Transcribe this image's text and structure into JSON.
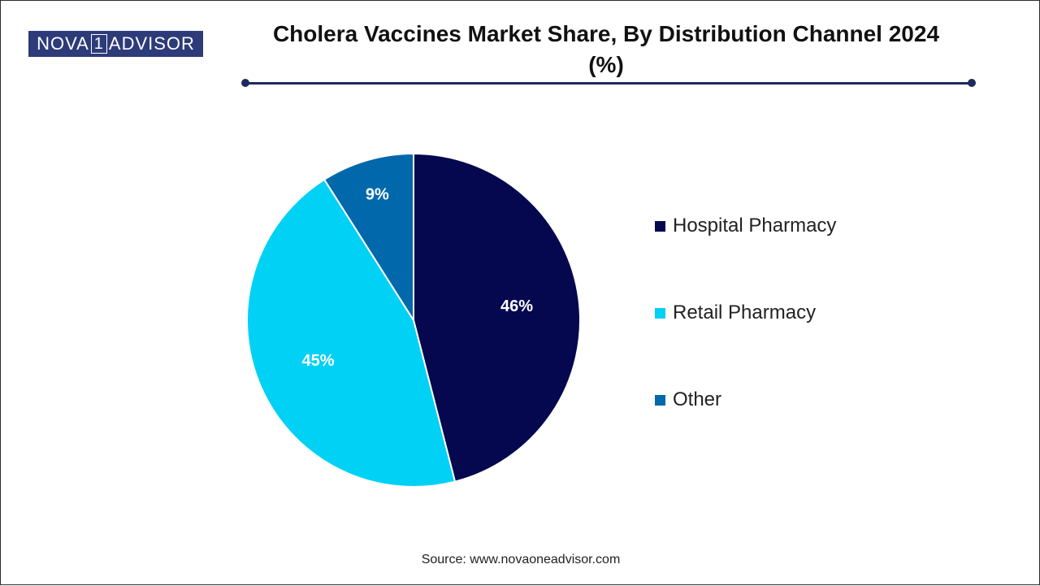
{
  "logo": {
    "part1": "NOVA",
    "part2": "1",
    "part3": "ADVISOR"
  },
  "header": {
    "title_line1": "Cholera Vaccines Market Share, By Distribution Channel 2024",
    "title_line2": "(%)"
  },
  "chart_data": {
    "type": "pie",
    "title": "Cholera Vaccines Market Share, By Distribution Channel 2024 (%)",
    "categories": [
      "Hospital Pharmacy",
      "Retail Pharmacy",
      "Other"
    ],
    "values": [
      46,
      45,
      9
    ],
    "labels": [
      "46%",
      "45%",
      "9%"
    ],
    "colors": [
      "#05084f",
      "#00d1f5",
      "#0068ab"
    ],
    "legend_position": "right"
  },
  "footer": {
    "source": "Source: www.novaoneadvisor.com"
  }
}
